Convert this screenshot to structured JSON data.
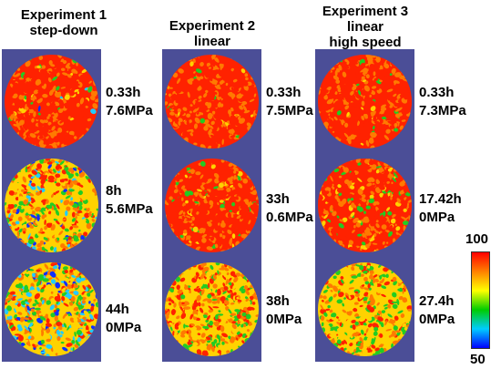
{
  "experiments": [
    {
      "title_line1": "Experiment 1",
      "title_line2": "step-down",
      "title_line3": "",
      "panels": [
        {
          "time": "0.33h",
          "pressure": "7.6MPa",
          "fraction_high": 0.9,
          "fraction_mid": 0.08,
          "fraction_low": 0.02
        },
        {
          "time": "8h",
          "pressure": "5.6MPa",
          "fraction_high": 0.35,
          "fraction_mid": 0.5,
          "fraction_low": 0.15
        },
        {
          "time": "44h",
          "pressure": "0MPa",
          "fraction_high": 0.2,
          "fraction_mid": 0.5,
          "fraction_low": 0.3
        }
      ]
    },
    {
      "title_line1": "Experiment 2",
      "title_line2": "linear",
      "title_line3": "",
      "panels": [
        {
          "time": "0.33h",
          "pressure": "7.5MPa",
          "fraction_high": 0.95,
          "fraction_mid": 0.05,
          "fraction_low": 0.0
        },
        {
          "time": "33h",
          "pressure": "0.6MPa",
          "fraction_high": 0.85,
          "fraction_mid": 0.15,
          "fraction_low": 0.0
        },
        {
          "time": "38h",
          "pressure": "0MPa",
          "fraction_high": 0.45,
          "fraction_mid": 0.55,
          "fraction_low": 0.0
        }
      ]
    },
    {
      "title_line1": "Experiment 3",
      "title_line2": "linear",
      "title_line3": "high speed",
      "panels": [
        {
          "time": "0.33h",
          "pressure": "7.3MPa",
          "fraction_high": 0.95,
          "fraction_mid": 0.05,
          "fraction_low": 0.0
        },
        {
          "time": "17.42h",
          "pressure": "0MPa",
          "fraction_high": 0.8,
          "fraction_mid": 0.2,
          "fraction_low": 0.0
        },
        {
          "time": "27.4h",
          "pressure": "0MPa",
          "fraction_high": 0.25,
          "fraction_mid": 0.75,
          "fraction_low": 0.0
        }
      ]
    }
  ],
  "colorbar": {
    "max_label": "100",
    "min_label": "50",
    "colors": [
      "#ff0000",
      "#ff8000",
      "#ffff00",
      "#00cc00",
      "#00ccff",
      "#0000ff"
    ]
  },
  "colors": {
    "strip_background": "#4b4e97",
    "high": "#ff2200",
    "orange": "#ff7a00",
    "yellow": "#ffd200",
    "green": "#22cc22",
    "cyan": "#22ccff",
    "blue": "#1030ff"
  }
}
